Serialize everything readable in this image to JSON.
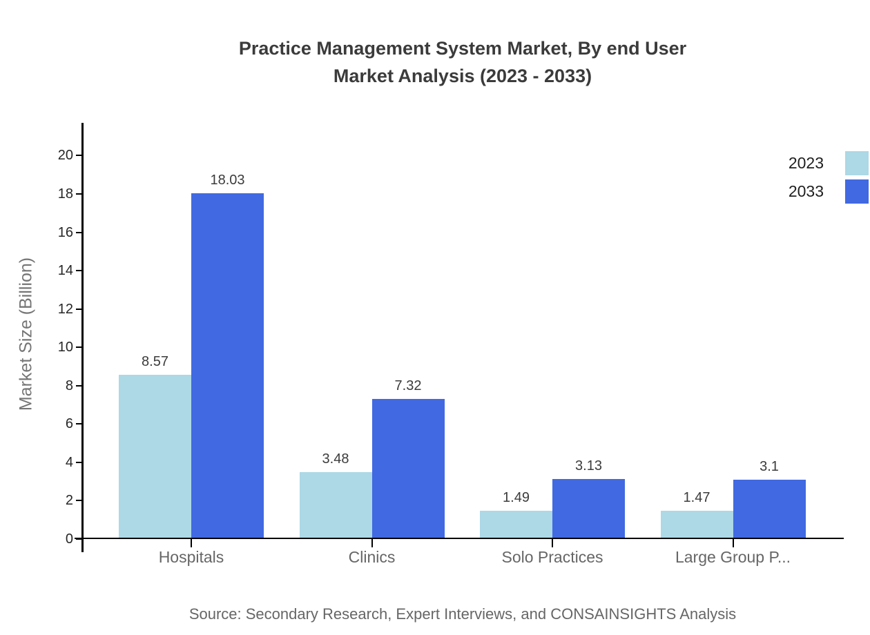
{
  "chart_data": {
    "type": "bar",
    "title": "Practice Management System Market, By end User\nMarket Analysis (2023 - 2033)",
    "categories": [
      "Hospitals",
      "Clinics",
      "Solo Practices",
      "Large Group P..."
    ],
    "series": [
      {
        "name": "2023",
        "color": "#ADD8E6",
        "values": [
          8.57,
          3.48,
          1.49,
          1.47
        ]
      },
      {
        "name": "2033",
        "color": "#4169E1",
        "values": [
          18.03,
          7.32,
          3.13,
          3.1
        ]
      }
    ],
    "xlabel": "",
    "ylabel": "Market Size (Billion)",
    "ylim": [
      0,
      21.6
    ],
    "yticks": [
      0,
      2,
      4,
      6,
      8,
      10,
      12,
      14,
      16,
      18,
      20
    ],
    "grid": false,
    "legend_position": "top-right",
    "value_labels_shown": true,
    "source": "Source: Secondary Research, Expert Interviews, and CONSAINSIGHTS Analysis"
  },
  "colors": {
    "background": "#ffffff",
    "axis": "#000000",
    "title_text": "#3b3b3b",
    "tick_text": "#262626",
    "category_text": "#666666",
    "axis_title_text": "#757575",
    "source_text": "#666666"
  }
}
